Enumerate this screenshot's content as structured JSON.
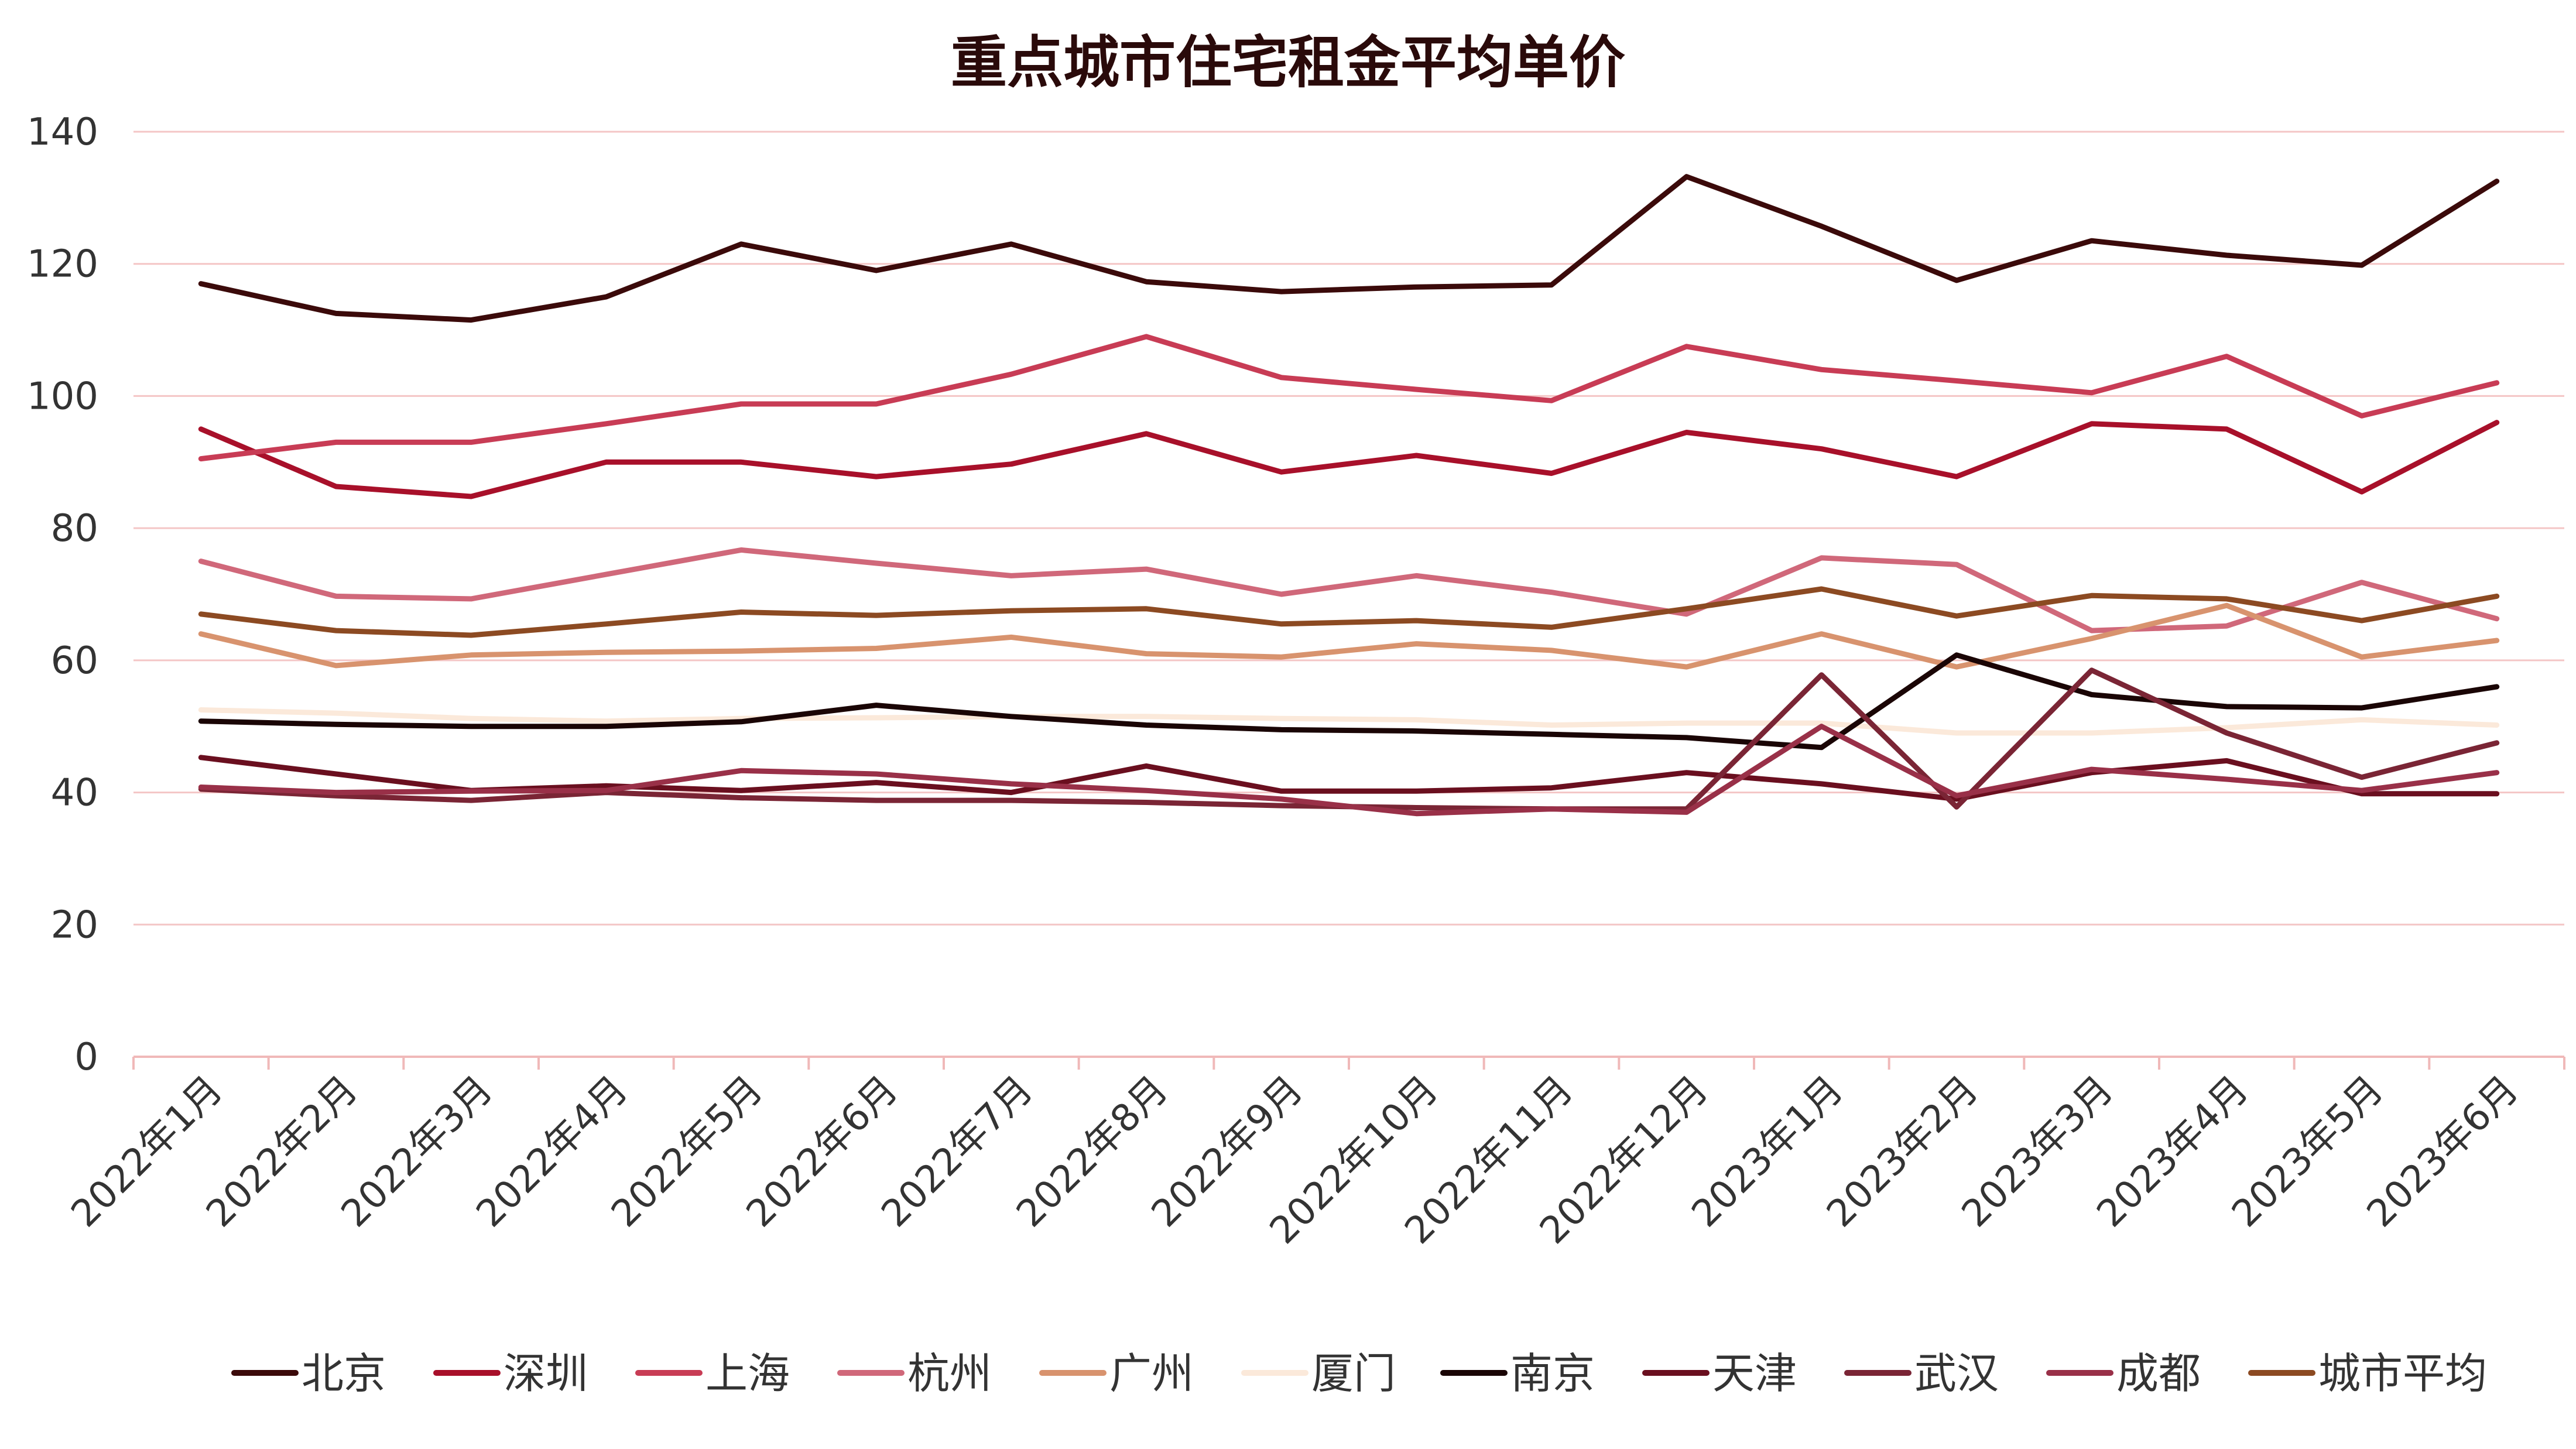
{
  "chart_data": {
    "type": "line",
    "title": "重点城市住宅租金平均单价",
    "xlabel": "",
    "ylabel": "",
    "ylim": [
      0,
      140
    ],
    "yticks": [
      0,
      20,
      40,
      60,
      80,
      100,
      120,
      140
    ],
    "grid": true,
    "legend_position": "bottom",
    "categories": [
      "2022年1月",
      "2022年2月",
      "2022年3月",
      "2022年4月",
      "2022年5月",
      "2022年6月",
      "2022年7月",
      "2022年8月",
      "2022年9月",
      "2022年10月",
      "2022年11月",
      "2022年12月",
      "2023年1月",
      "2023年2月",
      "2023年3月",
      "2023年4月",
      "2023年5月",
      "2023年6月"
    ],
    "series": [
      {
        "name": "北京",
        "color": "#3b0a0a",
        "values": [
          117,
          112.5,
          111.5,
          115,
          123,
          119,
          123,
          117.3,
          115.8,
          116.5,
          116.8,
          133.2,
          125.7,
          117.5,
          123.5,
          121.3,
          119.8,
          132.5
        ]
      },
      {
        "name": "深圳",
        "color": "#a8102a",
        "values": [
          95,
          86.3,
          84.8,
          90,
          90,
          87.8,
          89.7,
          94.3,
          88.5,
          91,
          88.3,
          94.5,
          92,
          87.8,
          95.8,
          95,
          85.5,
          96
        ]
      },
      {
        "name": "上海",
        "color": "#c83c55",
        "values": [
          90.5,
          93,
          93,
          95.8,
          98.8,
          98.8,
          103.3,
          109,
          102.8,
          101,
          99.3,
          107.5,
          104,
          102.3,
          100.5,
          106,
          97,
          102
        ]
      },
      {
        "name": "杭州",
        "color": "#d0687a",
        "values": [
          75,
          69.7,
          69.3,
          73,
          76.7,
          74.7,
          72.8,
          73.8,
          70,
          72.8,
          70.3,
          67,
          75.5,
          74.5,
          64.5,
          65.2,
          71.8,
          66.3
        ]
      },
      {
        "name": "广州",
        "color": "#d8936e",
        "values": [
          64,
          59.2,
          60.8,
          61.2,
          61.4,
          61.8,
          63.5,
          61,
          60.5,
          62.5,
          61.5,
          59,
          64,
          59,
          63.3,
          68.3,
          60.5,
          63
        ]
      },
      {
        "name": "厦门",
        "color": "#fbe9da",
        "values": [
          52.5,
          52,
          51.2,
          50.8,
          51.2,
          51.3,
          51.5,
          51.5,
          51.2,
          51,
          50.2,
          50.5,
          50.5,
          49,
          49,
          49.8,
          51,
          50.2
        ]
      },
      {
        "name": "南京",
        "color": "#1a0505",
        "values": [
          50.8,
          50.3,
          50,
          50,
          50.7,
          53.2,
          51.5,
          50.2,
          49.5,
          49.3,
          48.8,
          48.3,
          46.8,
          60.8,
          54.8,
          53,
          52.8,
          56
        ]
      },
      {
        "name": "天津",
        "color": "#6a0f1f",
        "values": [
          45.3,
          42.8,
          40.3,
          41,
          40.3,
          41.5,
          40,
          44,
          40.2,
          40.2,
          40.7,
          43,
          41.3,
          39,
          43,
          44.8,
          39.8,
          39.8
        ]
      },
      {
        "name": "武汉",
        "color": "#7a2535",
        "values": [
          40.5,
          39.5,
          38.8,
          40,
          39.2,
          38.8,
          38.8,
          38.5,
          38,
          37.7,
          37.5,
          37.5,
          57.8,
          37.8,
          58.5,
          49,
          42.3,
          47.5
        ]
      },
      {
        "name": "成都",
        "color": "#993048",
        "values": [
          40.8,
          40,
          40.2,
          40.3,
          43.3,
          42.8,
          41.3,
          40.3,
          39,
          36.8,
          37.5,
          37,
          50,
          39.5,
          43.5,
          42,
          40.3,
          43
        ]
      },
      {
        "name": "城市平均",
        "color": "#8c4a22",
        "values": [
          67,
          64.5,
          63.8,
          65.5,
          67.3,
          66.8,
          67.5,
          67.8,
          65.5,
          66,
          65,
          67.8,
          70.8,
          66.7,
          69.8,
          69.3,
          66,
          69.7
        ]
      }
    ]
  }
}
